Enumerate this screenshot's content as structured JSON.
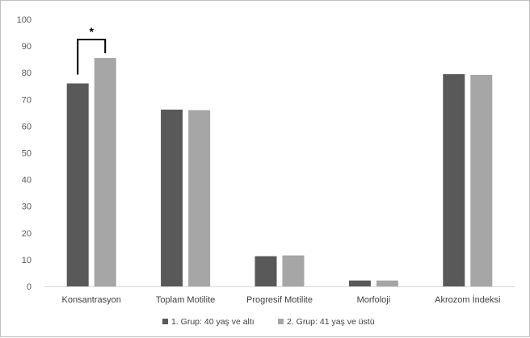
{
  "chart_data": {
    "type": "bar",
    "categories": [
      "Konsantrasyon",
      "Toplam Motilite",
      "Progresif Motilite",
      "Morfoloji",
      "Akrozom İndeksi"
    ],
    "series": [
      {
        "name": "1. Grup: 40 yaş ve altı",
        "color": "#595959",
        "values": [
          76,
          66.2,
          11.3,
          2.2,
          79.5
        ]
      },
      {
        "name": "2. Grup: 41 yaş ve üstü",
        "color": "#a6a6a6",
        "values": [
          85.5,
          66,
          11.6,
          2.2,
          79.2
        ]
      }
    ],
    "ylim": [
      0,
      100
    ],
    "yticks": [
      0,
      10,
      20,
      30,
      40,
      50,
      60,
      70,
      80,
      90,
      100
    ],
    "grid": false,
    "legend_position": "bottom",
    "annotations": [
      {
        "type": "significance-bracket",
        "category": "Konsantrasyon",
        "label": "*"
      }
    ]
  }
}
